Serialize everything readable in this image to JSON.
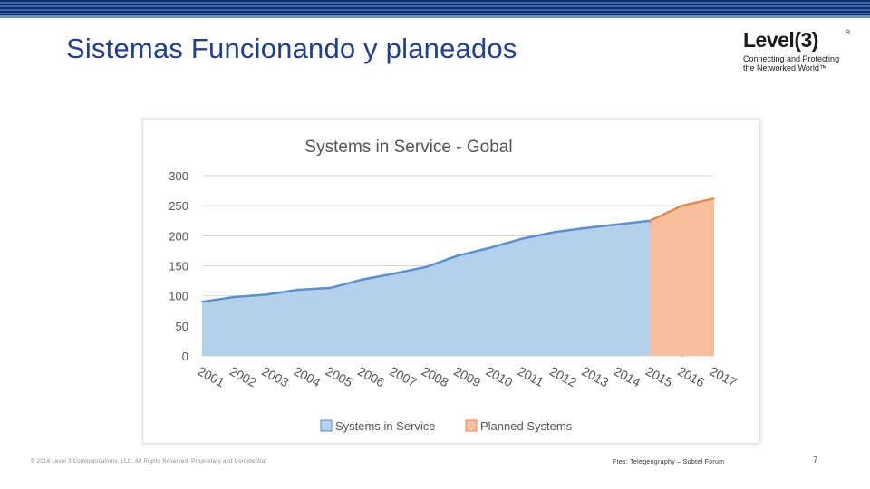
{
  "slide": {
    "title": "Sistemas Funcionando y planeados",
    "copyright": "© 2014 Level 3 Communications, LLC. All Rights Reserved. Proprietary and Confidential.",
    "source": "Ftes: Telegeography – Subtel Forum",
    "page_number": "7"
  },
  "logo": {
    "word": "Level(3)",
    "tagline_line1": "Connecting and Protecting",
    "tagline_line2": "the Networked World™"
  },
  "colors": {
    "title": "#1f3f8f",
    "in_service_fill": "#b4d1ec",
    "in_service_stroke": "#5b8fd1",
    "planned_fill": "#f8bf9d",
    "planned_stroke": "#e7884d",
    "gridline": "#d9d9d9"
  },
  "chart_data": {
    "type": "area",
    "title": "Systems in Service - Gobal",
    "xlabel": "",
    "ylabel": "",
    "categories": [
      "2001",
      "2002",
      "2003",
      "2004",
      "2005",
      "2006",
      "2007",
      "2008",
      "2009",
      "2010",
      "2011",
      "2012",
      "2013",
      "2014",
      "2015",
      "2016",
      "2017"
    ],
    "ylim": [
      0,
      300
    ],
    "yticks": [
      0,
      50,
      100,
      150,
      200,
      250,
      300
    ],
    "grid": true,
    "legend_position": "bottom",
    "series": [
      {
        "name": "Systems in Service",
        "values": [
          90,
          98,
          102,
          110,
          113,
          127,
          137,
          148,
          167,
          180,
          195,
          206,
          213,
          219,
          225,
          0,
          null
        ]
      },
      {
        "name": "Planned Systems",
        "values": [
          null,
          null,
          null,
          null,
          null,
          null,
          null,
          null,
          null,
          null,
          null,
          null,
          null,
          null,
          225,
          250,
          262
        ]
      }
    ]
  }
}
